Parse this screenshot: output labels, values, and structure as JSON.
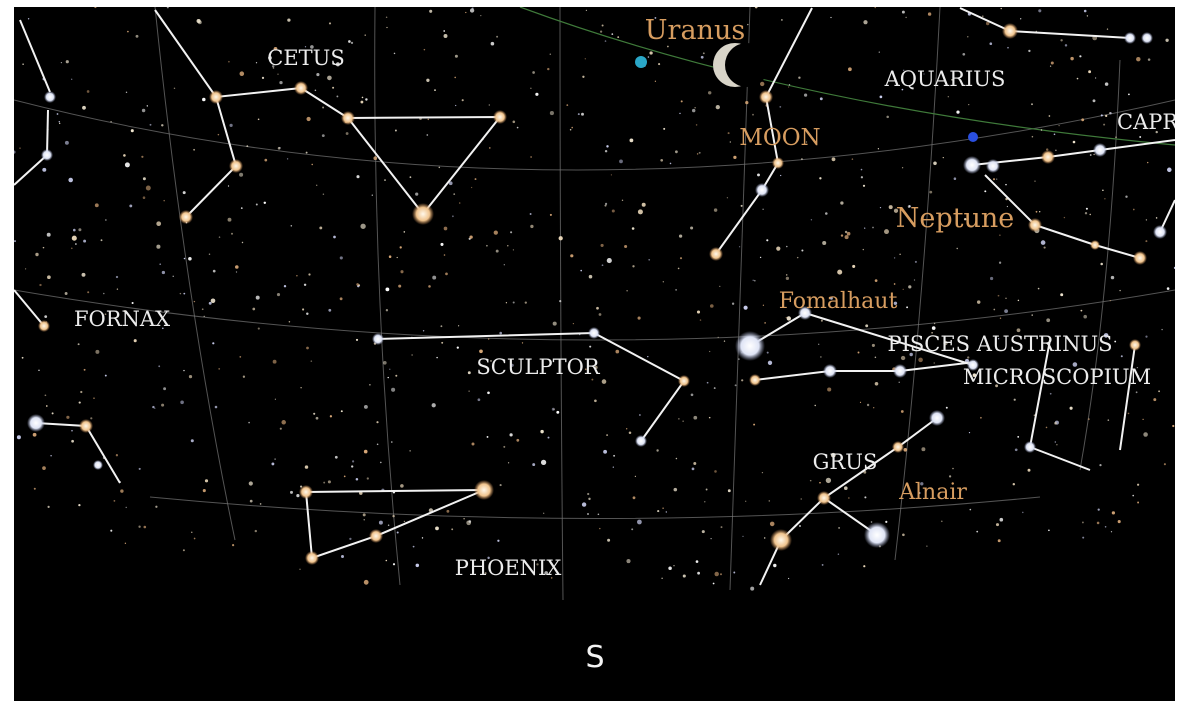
{
  "constellations": [
    "CETUS",
    "AQUARIUS",
    "CAPRICORNUS",
    "FORNAX",
    "SCULPTOR",
    "PISCES AUSTRINUS",
    "MICROSCOPIUM",
    "GRUS",
    "PHOENIX"
  ],
  "solar_system": [
    "Uranus",
    "MOON",
    "Neptune"
  ],
  "stars": [
    "Fomalhaut",
    "Alnair"
  ],
  "direction": "S"
}
